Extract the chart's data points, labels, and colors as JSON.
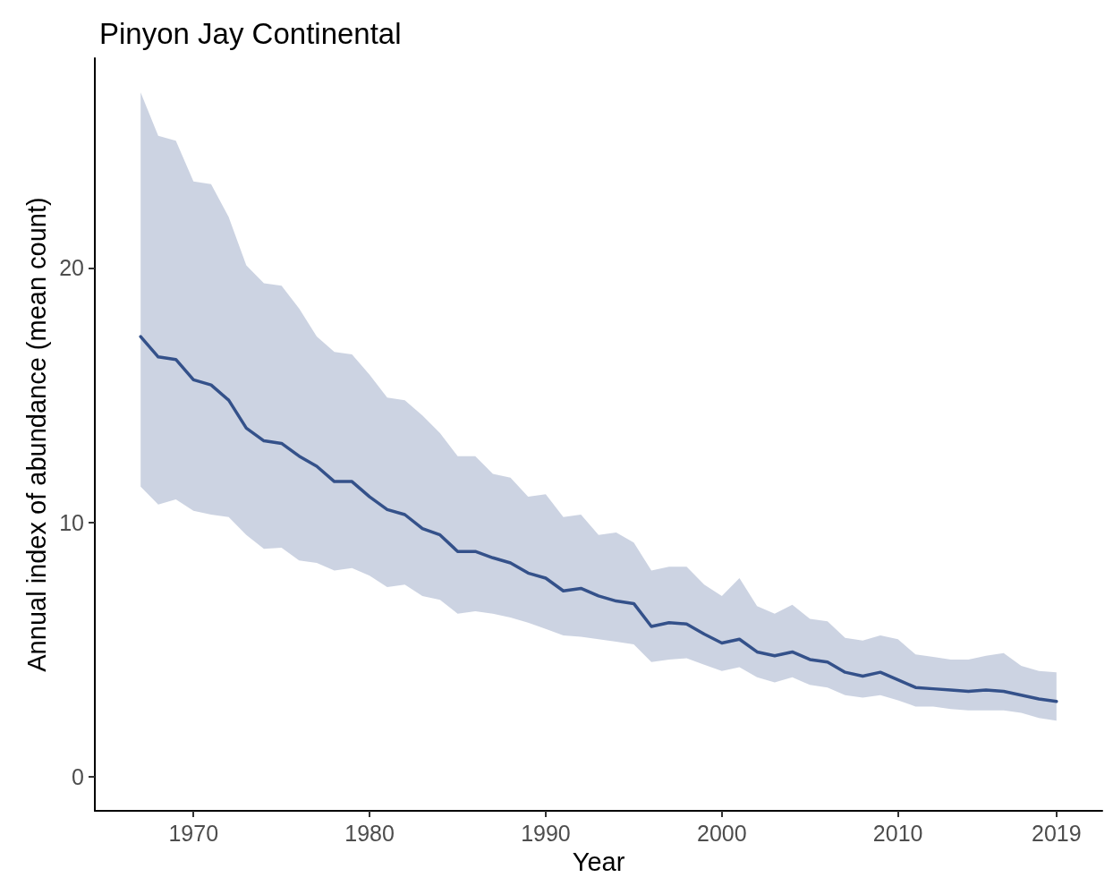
{
  "chart_data": {
    "type": "line",
    "title": "Pinyon Jay Continental",
    "xlabel": "Year",
    "ylabel": "Annual index of abundance (mean count)",
    "x": [
      1967,
      1968,
      1969,
      1970,
      1971,
      1972,
      1973,
      1974,
      1975,
      1976,
      1977,
      1978,
      1979,
      1980,
      1981,
      1982,
      1983,
      1984,
      1985,
      1986,
      1987,
      1988,
      1989,
      1990,
      1991,
      1992,
      1993,
      1994,
      1995,
      1996,
      1997,
      1998,
      1999,
      2000,
      2001,
      2002,
      2003,
      2004,
      2005,
      2006,
      2007,
      2008,
      2009,
      2010,
      2011,
      2012,
      2013,
      2014,
      2015,
      2016,
      2017,
      2018,
      2019
    ],
    "series": [
      {
        "color": "#34518a",
        "values": [
          17.3,
          16.5,
          16.4,
          15.6,
          15.4,
          14.8,
          13.7,
          13.2,
          13.1,
          12.6,
          12.2,
          11.6,
          11.6,
          11.0,
          10.5,
          10.3,
          9.75,
          9.5,
          8.85,
          8.85,
          8.6,
          8.4,
          8.0,
          7.8,
          7.3,
          7.4,
          7.1,
          6.9,
          6.8,
          5.9,
          6.05,
          6.0,
          5.6,
          5.25,
          5.4,
          4.9,
          4.75,
          4.9,
          4.6,
          4.5,
          4.1,
          3.95,
          4.1,
          3.8,
          3.5,
          3.45,
          3.4,
          3.35,
          3.4,
          3.35,
          3.2,
          3.05,
          2.95
        ],
        "upper": [
          26.9,
          25.2,
          25.0,
          23.4,
          23.3,
          22.0,
          20.1,
          19.4,
          19.3,
          18.4,
          17.3,
          16.7,
          16.6,
          15.8,
          14.9,
          14.8,
          14.2,
          13.5,
          12.6,
          12.6,
          11.9,
          11.75,
          11.0,
          11.1,
          10.2,
          10.3,
          9.5,
          9.6,
          9.2,
          8.1,
          8.25,
          8.25,
          7.55,
          7.1,
          7.8,
          6.7,
          6.4,
          6.75,
          6.2,
          6.1,
          5.45,
          5.35,
          5.55,
          5.4,
          4.8,
          4.7,
          4.6,
          4.6,
          4.75,
          4.85,
          4.35,
          4.15,
          4.1
        ],
        "lower": [
          11.4,
          10.7,
          10.9,
          10.45,
          10.3,
          10.2,
          9.5,
          8.95,
          9.0,
          8.5,
          8.4,
          8.1,
          8.2,
          7.9,
          7.45,
          7.55,
          7.1,
          6.95,
          6.4,
          6.5,
          6.4,
          6.25,
          6.05,
          5.8,
          5.55,
          5.5,
          5.4,
          5.3,
          5.2,
          4.5,
          4.6,
          4.65,
          4.4,
          4.15,
          4.3,
          3.9,
          3.7,
          3.9,
          3.6,
          3.5,
          3.2,
          3.1,
          3.2,
          3.0,
          2.75,
          2.75,
          2.65,
          2.6,
          2.6,
          2.6,
          2.5,
          2.3,
          2.2
        ]
      }
    ],
    "xlim": [
      1964.4,
      2021.6
    ],
    "ylim": [
      -1.35,
      28.25
    ],
    "xticks": [
      1970,
      1980,
      1990,
      2000,
      2010,
      2019
    ],
    "yticks": [
      0,
      10,
      20
    ]
  }
}
